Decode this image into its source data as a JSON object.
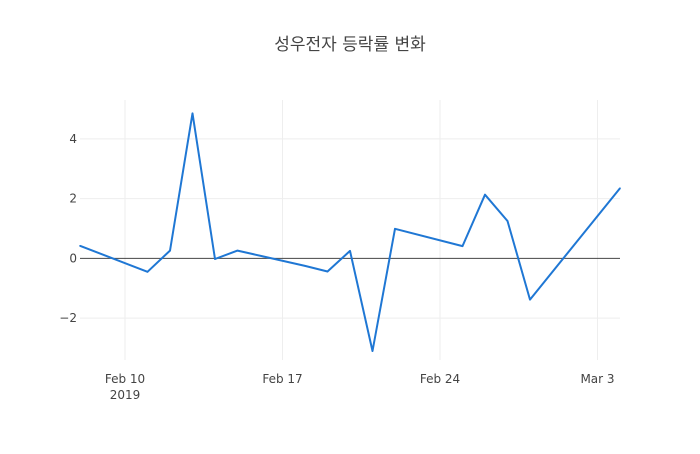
{
  "chart_data": {
    "type": "line",
    "title": "성우전자 등락률 변화",
    "xlabel": "",
    "ylabel": "",
    "x_ticks": [
      {
        "date": "2019-02-10",
        "label": "Feb 10",
        "sublabel": "2019"
      },
      {
        "date": "2019-02-17",
        "label": "Feb 17",
        "sublabel": ""
      },
      {
        "date": "2019-02-24",
        "label": "Feb 24",
        "sublabel": ""
      },
      {
        "date": "2019-03-03",
        "label": "Mar 3",
        "sublabel": ""
      }
    ],
    "y_ticks": [
      -2,
      0,
      2,
      4
    ],
    "xlim": [
      "2019-02-08",
      "2019-03-04"
    ],
    "ylim": [
      -3.4,
      5.3
    ],
    "grid": true,
    "series": [
      {
        "color": "#1f77d4",
        "x": [
          "2019-02-08",
          "2019-02-11",
          "2019-02-12",
          "2019-02-13",
          "2019-02-14",
          "2019-02-15",
          "2019-02-18",
          "2019-02-19",
          "2019-02-20",
          "2019-02-21",
          "2019-02-22",
          "2019-02-25",
          "2019-02-26",
          "2019-02-27",
          "2019-02-28",
          "2019-03-04"
        ],
        "values": [
          0.42,
          -0.45,
          0.26,
          4.85,
          -0.02,
          0.26,
          -0.25,
          -0.44,
          0.25,
          -3.1,
          0.99,
          0.41,
          2.13,
          1.25,
          -1.38,
          2.35
        ]
      }
    ]
  }
}
